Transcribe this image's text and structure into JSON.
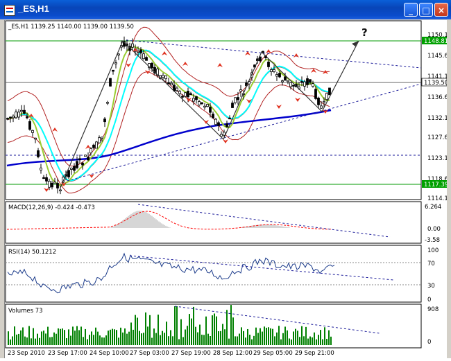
{
  "window": {
    "title": "_ES,H1",
    "buttons": {
      "minimize": "_",
      "maximize": "□",
      "close": "×"
    }
  },
  "colors": {
    "title_bar": "#0a4ccb",
    "ma_fast": "#9acd32",
    "ma_mid": "#00ffff",
    "ma_slow": "#0000cc",
    "bollinger": "#b22222",
    "trendline": "#1a1a99",
    "fractal": "#e0301e",
    "macd_histogram": "#c0c0c0",
    "macd_signal": "#ff0000",
    "rsi_line": "#1a3a8a",
    "volume_bars": "#008000",
    "current_price_label": "#00a000"
  },
  "main_panel": {
    "header": "_ES,H1  1139.25 1140.00 1139.00 1139.50",
    "question_mark": "?",
    "price_levels": [
      "1150.10",
      "1145.60",
      "1141.10",
      "1136.60",
      "1132.10",
      "1127.60",
      "1123.10",
      "1118.60",
      "1114.10"
    ],
    "current_price": "1139.50",
    "highlighted_levels": [
      "1148.81",
      "1117.39"
    ]
  },
  "macd_panel": {
    "header": "MACD(12,26,9) -0.424 -0.473",
    "levels": [
      "6.264",
      "0.00",
      "-3.58"
    ]
  },
  "rsi_panel": {
    "header": "RSI(14) 50.1212",
    "levels": [
      "100",
      "70",
      "30",
      "0"
    ]
  },
  "volume_panel": {
    "header": "Volumes 73",
    "levels": [
      "908",
      "0"
    ]
  },
  "time_axis": [
    "23 Sep 2010",
    "23 Sep 17:00",
    "24 Sep 10:00",
    "27 Sep 03:00",
    "27 Sep 19:00",
    "28 Sep 12:00",
    "29 Sep 05:00",
    "29 Sep 21:00"
  ],
  "chart_data": {
    "type": "candlestick",
    "symbol": "_ES",
    "timeframe": "H1",
    "y_range": [
      1114.1,
      1150.1
    ],
    "last_bar": {
      "open": 1139.25,
      "high": 1140.0,
      "low": 1139.0,
      "close": 1139.5
    },
    "support_resistance": [
      1148.81,
      1117.39
    ],
    "indicators": {
      "MACD(12,26,9)": {
        "main": -0.424,
        "signal": -0.473,
        "range": [
          -3.58,
          6.264
        ]
      },
      "RSI(14)": 50.1212,
      "Volumes": 73
    }
  }
}
